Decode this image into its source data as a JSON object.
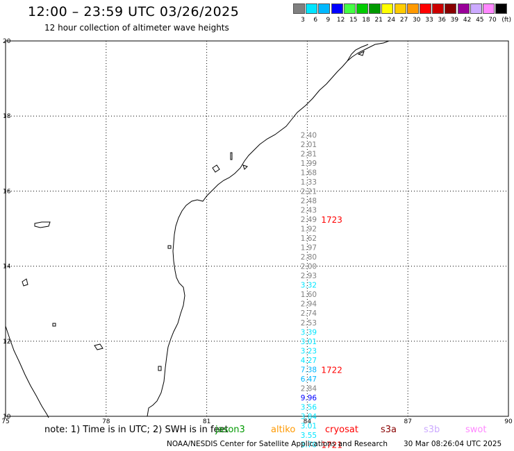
{
  "header": {
    "title": "12:00 – 23:59 UTC 03/26/2025",
    "subtitle": "12 hour collection of altimeter wave heights"
  },
  "scale": {
    "unit": "(ft)",
    "bins": [
      {
        "label": "3",
        "color": "#808080"
      },
      {
        "label": "6",
        "color": "#00e5ff"
      },
      {
        "label": "9",
        "color": "#00b8ff"
      },
      {
        "label": "12",
        "color": "#0000ff"
      },
      {
        "label": "15",
        "color": "#44ff44"
      },
      {
        "label": "18",
        "color": "#00cc00"
      },
      {
        "label": "21",
        "color": "#009900"
      },
      {
        "label": "24",
        "color": "#ffff00"
      },
      {
        "label": "27",
        "color": "#ffcc00"
      },
      {
        "label": "30",
        "color": "#ff9900"
      },
      {
        "label": "33",
        "color": "#ff0000"
      },
      {
        "label": "36",
        "color": "#cc0000"
      },
      {
        "label": "39",
        "color": "#880000"
      },
      {
        "label": "42",
        "color": "#990099"
      },
      {
        "label": "45",
        "color": "#ccaaff"
      },
      {
        "label": "70",
        "color": "#ff88ff"
      },
      {
        "label": "",
        "color": "#000000"
      }
    ]
  },
  "map": {
    "lon_range": [
      75,
      90
    ],
    "lat_range": [
      10,
      20
    ],
    "lon_ticks": [
      "75",
      "78",
      "81",
      "84",
      "87",
      "90"
    ],
    "lat_ticks": [
      "20",
      "18",
      "16",
      "14",
      "12",
      "10"
    ],
    "gridlines": true
  },
  "track": {
    "lon": 84.0,
    "points": [
      {
        "lat": 17.5,
        "value": "2.40",
        "color": "#808080"
      },
      {
        "lat": 17.25,
        "value": "2.01",
        "color": "#808080"
      },
      {
        "lat": 17.0,
        "value": "2.81",
        "color": "#808080"
      },
      {
        "lat": 16.75,
        "value": "1.99",
        "color": "#808080"
      },
      {
        "lat": 16.5,
        "value": "1.68",
        "color": "#808080"
      },
      {
        "lat": 16.25,
        "value": "1.33",
        "color": "#808080"
      },
      {
        "lat": 16.0,
        "value": "2.21",
        "color": "#808080"
      },
      {
        "lat": 15.75,
        "value": "2.48",
        "color": "#808080"
      },
      {
        "lat": 15.5,
        "value": "2.43",
        "color": "#808080"
      },
      {
        "lat": 15.25,
        "value": "2.49",
        "color": "#808080"
      },
      {
        "lat": 15.0,
        "value": "1.92",
        "color": "#808080"
      },
      {
        "lat": 14.75,
        "value": "1.62",
        "color": "#808080"
      },
      {
        "lat": 14.5,
        "value": "1.97",
        "color": "#808080"
      },
      {
        "lat": 14.25,
        "value": "2.80",
        "color": "#808080"
      },
      {
        "lat": 14.0,
        "value": "2.00",
        "color": "#808080"
      },
      {
        "lat": 13.75,
        "value": "2.93",
        "color": "#808080"
      },
      {
        "lat": 13.5,
        "value": "3.32",
        "color": "#00e5ff"
      },
      {
        "lat": 13.25,
        "value": "1.60",
        "color": "#808080"
      },
      {
        "lat": 13.0,
        "value": "2.94",
        "color": "#808080"
      },
      {
        "lat": 12.75,
        "value": "2.74",
        "color": "#808080"
      },
      {
        "lat": 12.5,
        "value": "2.53",
        "color": "#808080"
      },
      {
        "lat": 12.25,
        "value": "3.39",
        "color": "#00e5ff"
      },
      {
        "lat": 12.0,
        "value": "3.01",
        "color": "#00e5ff"
      },
      {
        "lat": 11.75,
        "value": "3.23",
        "color": "#00e5ff"
      },
      {
        "lat": 11.5,
        "value": "4.27",
        "color": "#00e5ff"
      },
      {
        "lat": 11.25,
        "value": "7.38",
        "color": "#00b8ff"
      },
      {
        "lat": 11.0,
        "value": "6.47",
        "color": "#00b8ff"
      },
      {
        "lat": 10.75,
        "value": "2.84",
        "color": "#808080"
      },
      {
        "lat": 10.5,
        "value": "9.96",
        "color": "#0000ff"
      },
      {
        "lat": 10.25,
        "value": "3.56",
        "color": "#00e5ff"
      },
      {
        "lat": 10.0,
        "value": "3.84",
        "color": "#00e5ff"
      },
      {
        "lat": 9.75,
        "value": "3.01",
        "color": "#00e5ff"
      },
      {
        "lat": 9.5,
        "value": "3.55",
        "color": "#00e5ff"
      },
      {
        "lat": 9.25,
        "value": "3.70",
        "color": "#00e5ff"
      }
    ],
    "time_labels": [
      {
        "lat": 15.25,
        "text": "1723",
        "color": "#ff0000"
      },
      {
        "lat": 11.25,
        "text": "1722",
        "color": "#ff0000"
      },
      {
        "lat": 9.25,
        "text": "1721",
        "color": "#ff0000"
      }
    ]
  },
  "footer": {
    "note": "note: 1) Time is in UTC; 2) SWH is in feet",
    "satellites": [
      {
        "name": "jason3",
        "color": "#009900"
      },
      {
        "name": "altiko",
        "color": "#ff9900"
      },
      {
        "name": "cryosat",
        "color": "#ff0000"
      },
      {
        "name": "s3a",
        "color": "#880000"
      },
      {
        "name": "s3b",
        "color": "#ccaaff"
      },
      {
        "name": "swot",
        "color": "#ff88ff"
      }
    ],
    "credit": "NOAA/NESDIS Center for Satellite Applications and Research",
    "timestamp": "30 Mar 08:26:04 UTC 2025"
  }
}
